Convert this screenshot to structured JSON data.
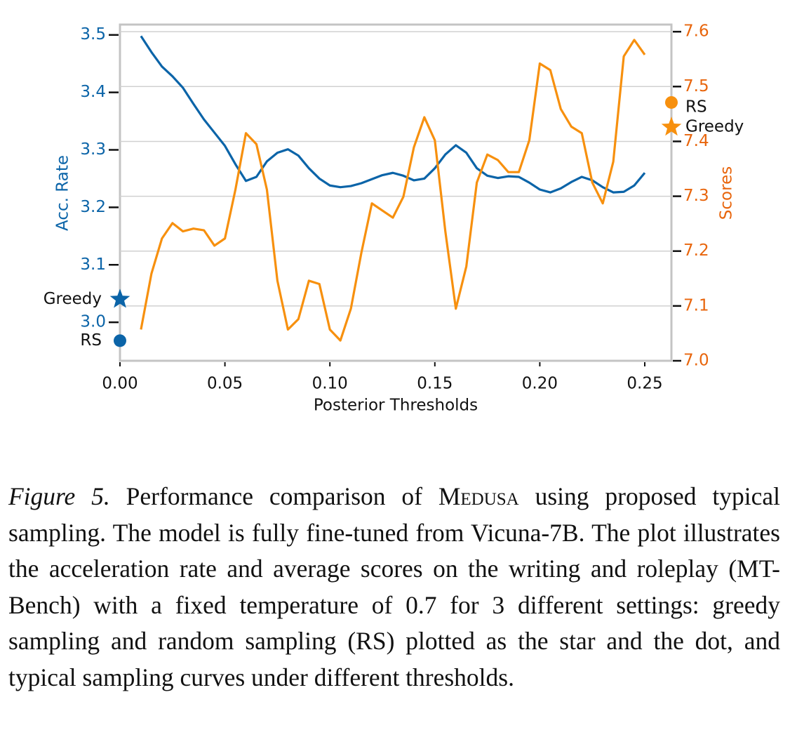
{
  "chart_data": {
    "type": "line",
    "x_label": "Posterior Thresholds",
    "y_label": "Acc. Rate",
    "y2_label": "Scores",
    "x": [
      0.01,
      0.015,
      0.02,
      0.025,
      0.03,
      0.035,
      0.04,
      0.045,
      0.05,
      0.055,
      0.06,
      0.065,
      0.07,
      0.075,
      0.08,
      0.085,
      0.09,
      0.095,
      0.1,
      0.105,
      0.11,
      0.115,
      0.12,
      0.125,
      0.13,
      0.135,
      0.14,
      0.145,
      0.15,
      0.155,
      0.16,
      0.165,
      0.17,
      0.175,
      0.18,
      0.185,
      0.19,
      0.195,
      0.2,
      0.205,
      0.21,
      0.215,
      0.22,
      0.225,
      0.23,
      0.235,
      0.24,
      0.245,
      0.25
    ],
    "series": [
      {
        "name": "Acc. Rate",
        "color": "#0b64a8",
        "axis": "y",
        "values": [
          3.498,
          3.47,
          3.445,
          3.428,
          3.408,
          3.38,
          3.353,
          3.33,
          3.307,
          3.275,
          3.246,
          3.253,
          3.28,
          3.295,
          3.301,
          3.29,
          3.268,
          3.25,
          3.238,
          3.235,
          3.237,
          3.242,
          3.249,
          3.256,
          3.26,
          3.255,
          3.247,
          3.25,
          3.268,
          3.292,
          3.308,
          3.295,
          3.268,
          3.255,
          3.251,
          3.254,
          3.253,
          3.243,
          3.231,
          3.226,
          3.233,
          3.244,
          3.253,
          3.247,
          3.235,
          3.226,
          3.227,
          3.238,
          3.26
        ]
      },
      {
        "name": "Scores",
        "color": "#f7900e",
        "axis": "y2",
        "values": [
          7.057,
          7.159,
          7.223,
          7.251,
          7.236,
          7.241,
          7.238,
          7.21,
          7.223,
          7.312,
          7.415,
          7.395,
          7.312,
          7.146,
          7.057,
          7.076,
          7.146,
          7.14,
          7.057,
          7.037,
          7.095,
          7.197,
          7.287,
          7.274,
          7.261,
          7.299,
          7.389,
          7.444,
          7.402,
          7.236,
          7.095,
          7.172,
          7.325,
          7.376,
          7.366,
          7.344,
          7.344,
          7.402,
          7.542,
          7.53,
          7.459,
          7.427,
          7.415,
          7.325,
          7.287,
          7.363,
          7.555,
          7.585,
          7.558
        ]
      }
    ],
    "markers": [
      {
        "name": "Greedy",
        "shape": "star",
        "axis": "y",
        "x": 0,
        "value": 3.04,
        "color": "#0b64a8"
      },
      {
        "name": "RS",
        "shape": "dot",
        "axis": "y",
        "x": 0,
        "value": 2.968,
        "color": "#0b64a8"
      },
      {
        "name": "RS",
        "shape": "dot",
        "axis": "y2",
        "x": 0.2627,
        "value": 7.471,
        "color": "#f7900e"
      },
      {
        "name": "Greedy",
        "shape": "star",
        "axis": "y2",
        "x": 0.2627,
        "value": 7.426,
        "color": "#f7900e"
      }
    ],
    "xlim": [
      0,
      0.2627
    ],
    "xticks": [
      {
        "value": 0,
        "label": "0.00"
      },
      0.05,
      {
        "value": 0.1,
        "label": "0.10"
      },
      0.15,
      {
        "value": 0.2,
        "label": "0.20"
      },
      0.25
    ],
    "ylim": [
      2.933,
      3.518
    ],
    "yticks": [
      {
        "value": 3,
        "label": "3.0"
      },
      3.1,
      3.2,
      3.3,
      3.4,
      3.5
    ],
    "y2lim": [
      7.0,
      7.613
    ],
    "y2ticks": [
      {
        "value": 7,
        "label": "7.0"
      },
      7.1,
      7.2,
      7.3,
      7.4,
      7.5,
      7.6
    ],
    "y_color": "#0b64a8",
    "y2_color": "#e8650c",
    "grid": "y2"
  },
  "caption": {
    "label": "Figure 5.",
    "before": "Performance comparison of",
    "name": "Medusa",
    "after": "using proposed typical sampling. The model is fully fine-tuned from Vicuna-7B. The plot illustrates the acceleration rate and average scores on the writing and roleplay (MT-Bench) with a fixed temperature of 0.7 for 3 different settings: greedy sampling and random sampling (RS) plotted as the star and the dot, and typical sampling curves under different thresholds."
  }
}
